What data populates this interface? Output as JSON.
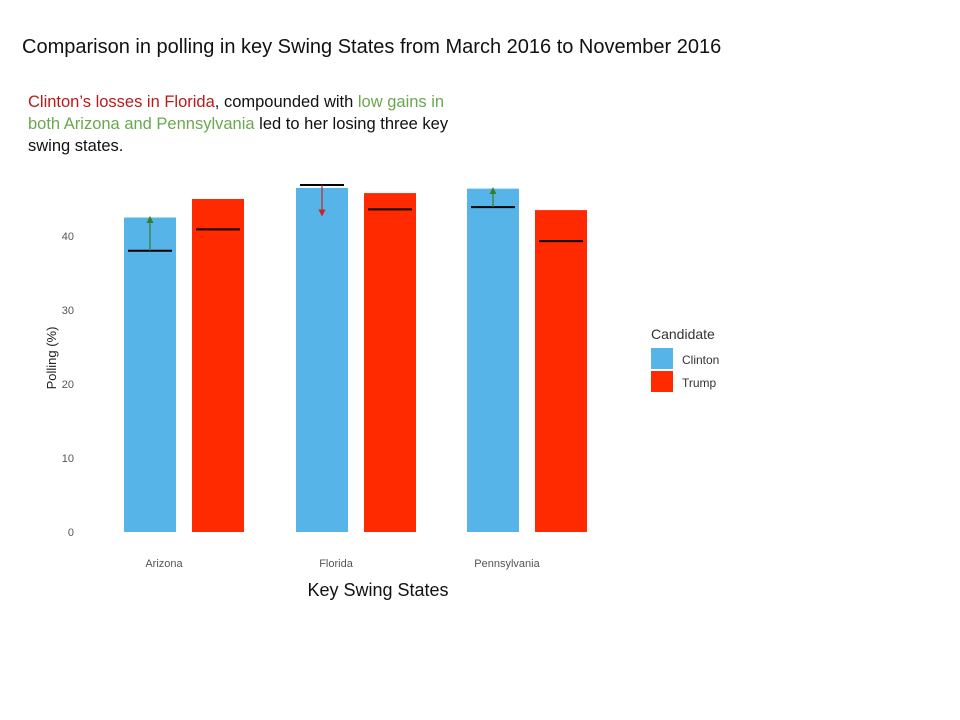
{
  "title": "Comparison in polling in key Swing States from March 2016 to November 2016",
  "annotation": {
    "part1": "Clinton’s losses in Florida",
    "part2": ", compounded with ",
    "part3": "low gains in both Arizona and Pennsylvania",
    "part4": " led to her losing three key swing states."
  },
  "chart_data": {
    "type": "bar",
    "categories": [
      "Arizona",
      "Florida",
      "Pennsylvania"
    ],
    "series": [
      {
        "name": "Clinton",
        "color": "#56b4e9",
        "values": [
          42.5,
          46.5,
          46.4
        ],
        "march_values": [
          38.0,
          46.9,
          43.9
        ]
      },
      {
        "name": "Trump",
        "color": "#ff2a00",
        "values": [
          45.0,
          45.8,
          43.5
        ],
        "march_values": [
          40.9,
          43.6,
          39.3
        ]
      }
    ],
    "xlabel": "Key Swing States",
    "ylabel": "Polling (%)",
    "ylim": [
      0,
      48
    ],
    "yticks": [
      0,
      10,
      20,
      30,
      40
    ],
    "legend": {
      "title": "Candidate",
      "position": "right"
    },
    "arrow_colors": {
      "gain": "#3a7d2c",
      "loss": "#cc2222"
    },
    "grid": false
  }
}
